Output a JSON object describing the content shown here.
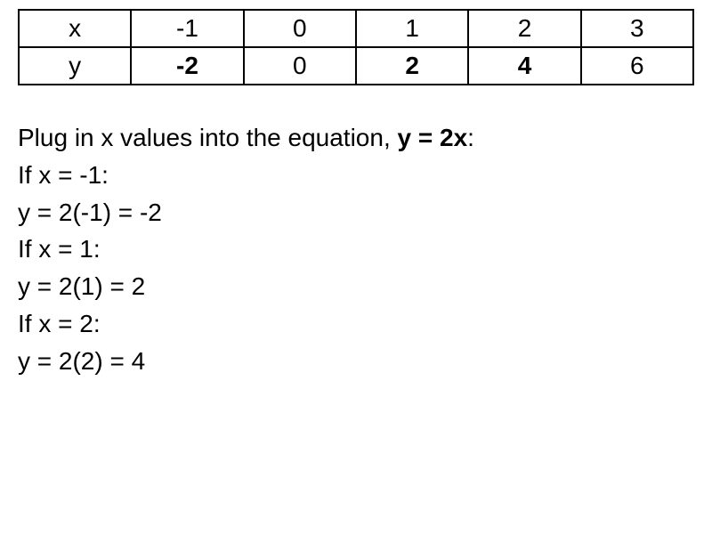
{
  "table": {
    "rows": [
      {
        "label": "x",
        "label_bold": false,
        "cells": [
          {
            "v": "-1",
            "bold": false
          },
          {
            "v": "0",
            "bold": false
          },
          {
            "v": "1",
            "bold": false
          },
          {
            "v": "2",
            "bold": false
          },
          {
            "v": "3",
            "bold": false
          }
        ]
      },
      {
        "label": "y",
        "label_bold": false,
        "cells": [
          {
            "v": "-2",
            "bold": true
          },
          {
            "v": "0",
            "bold": false
          },
          {
            "v": "2",
            "bold": true
          },
          {
            "v": "4",
            "bold": true
          },
          {
            "v": "6",
            "bold": false
          }
        ]
      }
    ],
    "border_color": "#000000",
    "cell_fontsize": 28
  },
  "explanation": {
    "intro_prefix": "Plug in x values into the equation, ",
    "intro_bold": "y = 2x",
    "intro_suffix": ":",
    "steps": [
      {
        "when": "If x = -1:",
        "calc": "y = 2(-1) = -2"
      },
      {
        "when": "If x = 1:",
        "calc": "y = 2(1) = 2"
      },
      {
        "when": "If x = 2:",
        "calc": "y = 2(2) = 4"
      }
    ]
  },
  "colors": {
    "background": "#ffffff",
    "text": "#000000"
  },
  "typography": {
    "body_fontsize": 28,
    "font_family": "Arial"
  }
}
